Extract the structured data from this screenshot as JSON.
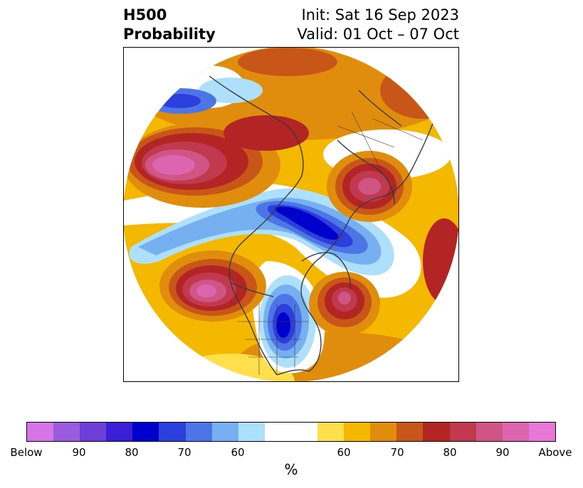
{
  "title": {
    "left_line1": "H500",
    "left_line2": "Probability",
    "right_line1": "Init: Sat 16 Sep 2023",
    "right_line2": "Valid: 01 Oct – 07 Oct"
  },
  "map": {
    "projection": "north polar stereographic",
    "features": [
      "coastlines",
      "country borders",
      "US state borders"
    ]
  },
  "colorbar": {
    "unit": "%",
    "tick_labels": [
      "Below",
      "90",
      "80",
      "70",
      "60",
      "60",
      "70",
      "80",
      "90",
      "Above"
    ],
    "below_colors": [
      "#d675e8",
      "#9b5ce0",
      "#6b3fd8",
      "#3a1fd6",
      "#0000cc",
      "#2a3fdc",
      "#4d75e6",
      "#77b0f0",
      "#aee0fb"
    ],
    "neutral_color": "#ffffff",
    "above_colors": [
      "#ffe04c",
      "#f4b800",
      "#e08c0c",
      "#c85618",
      "#b32424",
      "#c0394e",
      "#cf5585",
      "#dd65b0",
      "#e878d8"
    ]
  },
  "anomalies": [
    {
      "region": "North Pacific",
      "sign": "above",
      "level": "90"
    },
    {
      "region": "Western Russia",
      "sign": "above",
      "level": "90"
    },
    {
      "region": "Eastern Pacific off US West Coast",
      "sign": "above",
      "level": "90"
    },
    {
      "region": "Northwest Atlantic",
      "sign": "above",
      "level": "90"
    },
    {
      "region": "Arctic Ocean / Kara Sea",
      "sign": "below",
      "level": "80"
    },
    {
      "region": "Great Lakes",
      "sign": "below",
      "level": "80"
    },
    {
      "region": "Eastern Asia / Japan",
      "sign": "below",
      "level": "70"
    }
  ]
}
